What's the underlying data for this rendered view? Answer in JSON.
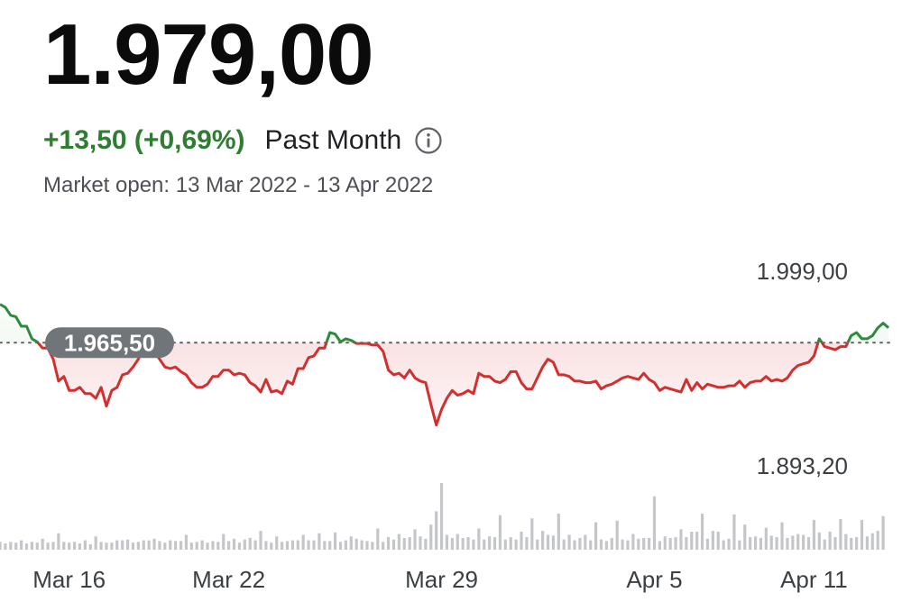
{
  "header": {
    "price": "1.979,00",
    "change": "+13,50 (+0,69%)",
    "change_color": "#2e7d32",
    "period": "Past Month",
    "info_icon": "info-icon",
    "market_status": "Market open: 13 Mar 2022 - 13 Apr 2022"
  },
  "chart_data": {
    "type": "line",
    "title": "",
    "xlabel": "",
    "ylabel": "",
    "ylim": [
      1893.2,
      1999.0
    ],
    "y_extremes_labels": [
      "1.999,00",
      "1.893,20"
    ],
    "reference_value": 1965.5,
    "reference_label": "1.965,50",
    "x_ticks": [
      {
        "label": "Mar 16",
        "x": 13
      },
      {
        "label": "Mar 22",
        "x": 43
      },
      {
        "label": "Mar 29",
        "x": 83
      },
      {
        "label": "Apr 5",
        "x": 123
      },
      {
        "label": "Apr 11",
        "x": 153
      }
    ],
    "x_range": [
      0,
      167
    ],
    "colors": {
      "above": "#2e8b3c",
      "below": "#d32f2f",
      "fill_above": "#e6f3e8",
      "fill_below": "#f8d9da",
      "volume": "#c4c6c9",
      "reference": "#5f6368",
      "badge": "#70757a"
    },
    "series": [
      {
        "values": [
          1990,
          1988,
          1983,
          1982,
          1976,
          1976,
          1968,
          1966,
          1962,
          1962,
          1955,
          1941,
          1944,
          1935,
          1935,
          1937,
          1933,
          1933,
          1930,
          1937,
          1925,
          1935,
          1937,
          1945,
          1946,
          1950,
          1955,
          1962,
          1965,
          1960,
          1955,
          1950,
          1949,
          1950,
          1947,
          1945,
          1940,
          1937,
          1937,
          1939,
          1944,
          1944,
          1948,
          1948,
          1945,
          1946,
          1945,
          1940,
          1938,
          1934,
          1942,
          1934,
          1935,
          1933,
          1941,
          1939,
          1949,
          1949,
          1956,
          1957,
          1962,
          1962,
          1972,
          1971,
          1966,
          1968,
          1967,
          1965,
          1965,
          1965,
          1964,
          1964,
          1960,
          1948,
          1945,
          1946,
          1943,
          1948,
          1943,
          1941,
          1940,
          1926,
          1913,
          1923,
          1930,
          1935,
          1932,
          1933,
          1935,
          1933,
          1946,
          1944,
          1944,
          1941,
          1940,
          1942,
          1947,
          1947,
          1940,
          1936,
          1936,
          1943,
          1950,
          1955,
          1953,
          1945,
          1945,
          1944,
          1941,
          1941,
          1940,
          1940,
          1941,
          1936,
          1938,
          1939,
          1941,
          1943,
          1944,
          1943,
          1942,
          1946,
          1942,
          1940,
          1935,
          1937,
          1936,
          1935,
          1934,
          1942,
          1935,
          1940,
          1936,
          1939,
          1938,
          1937,
          1937,
          1938,
          1938,
          1941,
          1937,
          1940,
          1941,
          1941,
          1944,
          1941,
          1942,
          1941,
          1943,
          1948,
          1951,
          1952,
          1953,
          1957,
          1968,
          1963,
          1962,
          1961,
          1963,
          1963,
          1970,
          1972,
          1968,
          1968,
          1970,
          1975,
          1978,
          1975
        ]
      }
    ],
    "volume": [
      10,
      8,
      10,
      9,
      12,
      8,
      10,
      9,
      14,
      9,
      10,
      21,
      10,
      9,
      10,
      8,
      12,
      7,
      17,
      10,
      9,
      9,
      12,
      12,
      13,
      9,
      10,
      12,
      12,
      14,
      11,
      9,
      12,
      11,
      11,
      19,
      9,
      10,
      12,
      9,
      11,
      10,
      20,
      11,
      14,
      9,
      13,
      15,
      12,
      24,
      11,
      9,
      17,
      10,
      11,
      12,
      12,
      19,
      12,
      12,
      21,
      11,
      11,
      22,
      10,
      12,
      17,
      14,
      12,
      11,
      10,
      27,
      10,
      16,
      13,
      20,
      15,
      16,
      26,
      17,
      14,
      32,
      49,
      85,
      19,
      15,
      20,
      15,
      16,
      13,
      27,
      13,
      17,
      16,
      44,
      13,
      16,
      13,
      23,
      16,
      40,
      13,
      24,
      19,
      18,
      46,
      13,
      19,
      12,
      15,
      19,
      12,
      35,
      13,
      11,
      15,
      37,
      13,
      12,
      20,
      14,
      15,
      15,
      68,
      11,
      17,
      15,
      16,
      26,
      16,
      23,
      23,
      46,
      14,
      24,
      23,
      12,
      14,
      45,
      12,
      32,
      16,
      17,
      15,
      28,
      18,
      16,
      35,
      15,
      18,
      20,
      19,
      16,
      38,
      22,
      13,
      23,
      16,
      39,
      20,
      15,
      16,
      38,
      17,
      21,
      24,
      43
    ]
  }
}
